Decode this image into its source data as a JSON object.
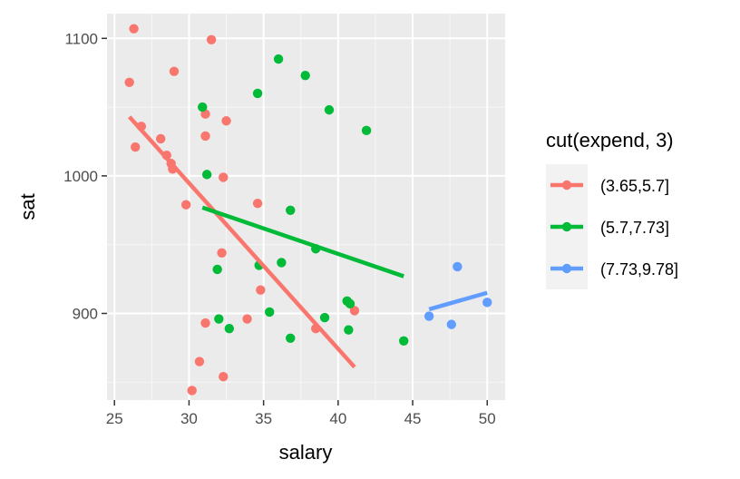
{
  "chart_data": {
    "type": "scatter",
    "xlabel": "salary",
    "ylabel": "sat",
    "xlim": [
      24.5,
      51.2
    ],
    "ylim": [
      837,
      1118
    ],
    "x_ticks": [
      25,
      30,
      35,
      40,
      45,
      50
    ],
    "y_ticks": [
      900,
      1000,
      1100
    ],
    "x_tick_labels": [
      "25",
      "30",
      "35",
      "40",
      "45",
      "50"
    ],
    "y_tick_labels": [
      "900",
      "1000",
      "1100"
    ],
    "grid": true,
    "legend": {
      "title": "cut(expend, 3)",
      "position": "right"
    },
    "series": [
      {
        "name": "(3.65,5.7]",
        "color": "#F8766D",
        "points": [
          [
            26.0,
            1068
          ],
          [
            26.3,
            1107
          ],
          [
            26.4,
            1021
          ],
          [
            26.8,
            1036
          ],
          [
            28.1,
            1027
          ],
          [
            28.5,
            1015
          ],
          [
            28.8,
            1009
          ],
          [
            28.9,
            1005
          ],
          [
            29.0,
            1076
          ],
          [
            29.8,
            979
          ],
          [
            30.2,
            844
          ],
          [
            30.7,
            865
          ],
          [
            31.1,
            893
          ],
          [
            31.1,
            1029
          ],
          [
            31.1,
            1045
          ],
          [
            31.5,
            1099
          ],
          [
            32.2,
            944
          ],
          [
            32.3,
            999
          ],
          [
            32.3,
            854
          ],
          [
            32.5,
            1040
          ],
          [
            33.9,
            896
          ],
          [
            34.6,
            980
          ],
          [
            34.8,
            917
          ],
          [
            38.5,
            889
          ],
          [
            41.1,
            902
          ]
        ],
        "fit": [
          [
            26.0,
            1043
          ],
          [
            41.1,
            861
          ]
        ]
      },
      {
        "name": "(5.7,7.73]",
        "color": "#00BA38",
        "points": [
          [
            30.9,
            1050
          ],
          [
            31.2,
            1001
          ],
          [
            31.9,
            932
          ],
          [
            32.0,
            896
          ],
          [
            32.7,
            889
          ],
          [
            34.6,
            1060
          ],
          [
            34.7,
            935
          ],
          [
            35.4,
            901
          ],
          [
            36.0,
            1085
          ],
          [
            36.2,
            937
          ],
          [
            36.8,
            882
          ],
          [
            36.8,
            975
          ],
          [
            37.8,
            1073
          ],
          [
            38.5,
            947
          ],
          [
            39.1,
            897
          ],
          [
            39.4,
            1048
          ],
          [
            40.6,
            909
          ],
          [
            40.7,
            888
          ],
          [
            40.8,
            907
          ],
          [
            41.9,
            1033
          ],
          [
            44.4,
            880
          ]
        ],
        "fit": [
          [
            30.9,
            977
          ],
          [
            44.4,
            927
          ]
        ]
      },
      {
        "name": "(7.73,9.78]",
        "color": "#619CFF",
        "points": [
          [
            46.1,
            898
          ],
          [
            47.6,
            892
          ],
          [
            48.0,
            934
          ],
          [
            50.0,
            908
          ]
        ],
        "fit": [
          [
            46.1,
            903
          ],
          [
            50.0,
            915
          ]
        ]
      }
    ]
  }
}
